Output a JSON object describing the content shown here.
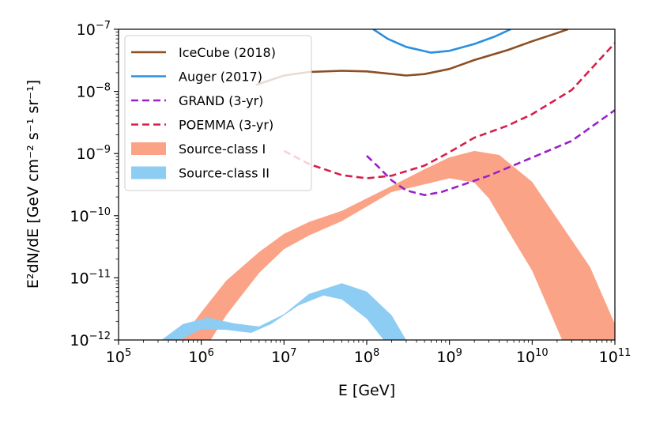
{
  "chart_data": {
    "type": "line",
    "title": "",
    "xlabel": "E [GeV]",
    "ylabel": "E²dN/dE [GeV cm⁻² s⁻¹ sr⁻¹]",
    "xscale": "log",
    "yscale": "log",
    "xlim": [
      100000,
      100000000000
    ],
    "ylim": [
      1e-12,
      1e-07
    ],
    "grid": false,
    "legend_position": "top-left",
    "x_ticks": [
      {
        "base": "10",
        "exp": "5"
      },
      {
        "base": "10",
        "exp": "6"
      },
      {
        "base": "10",
        "exp": "7"
      },
      {
        "base": "10",
        "exp": "8"
      },
      {
        "base": "10",
        "exp": "9"
      },
      {
        "base": "10",
        "exp": "10"
      },
      {
        "base": "10",
        "exp": "11"
      }
    ],
    "y_ticks": [
      {
        "base": "10",
        "exp": "−12"
      },
      {
        "base": "10",
        "exp": "−11"
      },
      {
        "base": "10",
        "exp": "−10"
      },
      {
        "base": "10",
        "exp": "−9"
      },
      {
        "base": "10",
        "exp": "−8"
      },
      {
        "base": "10",
        "exp": "−7"
      }
    ],
    "series": [
      {
        "name": "IceCube (2018)",
        "kind": "line",
        "style": "solid",
        "color": "#8c4f24",
        "points": [
          [
            4600000.0,
            1.27e-08
          ],
          [
            10000000.0,
            1.8e-08
          ],
          [
            20000000.0,
            2.05e-08
          ],
          [
            50000000.0,
            2.15e-08
          ],
          [
            100000000.0,
            2.1e-08
          ],
          [
            300000000.0,
            1.8e-08
          ],
          [
            500000000.0,
            1.9e-08
          ],
          [
            1000000000.0,
            2.3e-08
          ],
          [
            2000000000.0,
            3.2e-08
          ],
          [
            5000000000.0,
            4.6e-08
          ],
          [
            10000000000.0,
            6.4e-08
          ],
          [
            20000000000.0,
            8.7e-08
          ],
          [
            27000000000.0,
            1e-07
          ]
        ]
      },
      {
        "name": "Auger (2017)",
        "kind": "line",
        "style": "solid",
        "color": "#2b8fe0",
        "points": [
          [
            120000000.0,
            1e-07
          ],
          [
            180000000.0,
            7e-08
          ],
          [
            300000000.0,
            5.2e-08
          ],
          [
            600000000.0,
            4.2e-08
          ],
          [
            1000000000.0,
            4.5e-08
          ],
          [
            2000000000.0,
            5.8e-08
          ],
          [
            3500000000.0,
            7.6e-08
          ],
          [
            5500000000.0,
            1e-07
          ]
        ]
      },
      {
        "name": "GRAND (3-yr)",
        "kind": "line",
        "style": "dashed",
        "color": "#9b21c9",
        "points": [
          [
            100000000.0,
            9.2e-10
          ],
          [
            140000000.0,
            6e-10
          ],
          [
            200000000.0,
            3.7e-10
          ],
          [
            300000000.0,
            2.55e-10
          ],
          [
            500000000.0,
            2.15e-10
          ],
          [
            800000000.0,
            2.4e-10
          ],
          [
            1500000000.0,
            3.2e-10
          ],
          [
            3000000000.0,
            4.4e-10
          ],
          [
            10000000000.0,
            8.6e-10
          ],
          [
            30000000000.0,
            1.6e-09
          ],
          [
            100000000000.0,
            5e-09
          ]
        ]
      },
      {
        "name": "POEMMA (3-yr)",
        "kind": "line",
        "style": "dashed",
        "color": "#d81e4a",
        "points": [
          [
            10000000.0,
            1.1e-09
          ],
          [
            20000000.0,
            6.8e-10
          ],
          [
            50000000.0,
            4.5e-10
          ],
          [
            100000000.0,
            4e-10
          ],
          [
            200000000.0,
            4.4e-10
          ],
          [
            500000000.0,
            6.4e-10
          ],
          [
            1000000000.0,
            1.05e-09
          ],
          [
            2000000000.0,
            1.8e-09
          ],
          [
            5000000000.0,
            2.8e-09
          ],
          [
            10000000000.0,
            4.3e-09
          ],
          [
            30000000000.0,
            1.05e-08
          ],
          [
            100000000000.0,
            6e-08
          ]
        ]
      },
      {
        "name": "Source-class I",
        "kind": "band",
        "color": "#fba386",
        "upper": [
          [
            560000.0,
            1e-12
          ],
          [
            1000000.0,
            2.8e-12
          ],
          [
            2000000.0,
            9e-12
          ],
          [
            5000000.0,
            2.6e-11
          ],
          [
            10000000.0,
            5.1e-11
          ],
          [
            20000000.0,
            7.9e-11
          ],
          [
            50000000.0,
            1.2e-10
          ],
          [
            100000000.0,
            1.9e-10
          ],
          [
            200000000.0,
            3e-10
          ],
          [
            500000000.0,
            5.6e-10
          ],
          [
            1000000000.0,
            8.7e-10
          ],
          [
            2000000000.0,
            1.1e-09
          ],
          [
            4000000000.0,
            9.5e-10
          ],
          [
            10000000000.0,
            3.5e-10
          ],
          [
            20000000000.0,
            9e-11
          ],
          [
            50000000000.0,
            1.5e-11
          ],
          [
            100000000000.0,
            1.8e-12
          ]
        ],
        "lower": [
          [
            100000000000.0,
            1e-12
          ],
          [
            23000000000.0,
            1e-12
          ],
          [
            10000000000.0,
            1.3e-11
          ],
          [
            5000000000.0,
            6e-11
          ],
          [
            3000000000.0,
            1.9e-10
          ],
          [
            2000000000.0,
            3.4e-10
          ],
          [
            1000000000.0,
            4e-10
          ],
          [
            500000000.0,
            3.2e-10
          ],
          [
            200000000.0,
            2.4e-10
          ],
          [
            100000000.0,
            1.4e-10
          ],
          [
            50000000.0,
            8.2e-11
          ],
          [
            20000000.0,
            4.8e-11
          ],
          [
            10000000.0,
            2.9e-11
          ],
          [
            5000000.0,
            1.2e-11
          ],
          [
            2000000.0,
            2.5e-12
          ],
          [
            1300000.0,
            1e-12
          ]
        ]
      },
      {
        "name": "Source-class II",
        "kind": "band",
        "color": "#8dcdf3",
        "upper": [
          [
            330000.0,
            1e-12
          ],
          [
            600000.0,
            1.8e-12
          ],
          [
            1200000.0,
            2.3e-12
          ],
          [
            2500000.0,
            1.85e-12
          ],
          [
            5000000.0,
            1.65e-12
          ],
          [
            10000000.0,
            2.6e-12
          ],
          [
            20000000.0,
            5.5e-12
          ],
          [
            50000000.0,
            8.2e-12
          ],
          [
            100000000.0,
            6e-12
          ],
          [
            200000000.0,
            2.5e-12
          ],
          [
            300000000.0,
            1e-12
          ]
        ],
        "lower": [
          [
            160000000.0,
            1e-12
          ],
          [
            100000000.0,
            2.2e-12
          ],
          [
            50000000.0,
            4.5e-12
          ],
          [
            30000000.0,
            5.2e-12
          ],
          [
            15000000.0,
            3.6e-12
          ],
          [
            7000000.0,
            1.8e-12
          ],
          [
            4000000.0,
            1.3e-12
          ],
          [
            2000000.0,
            1.45e-12
          ],
          [
            1000000.0,
            1.5e-12
          ],
          [
            550000.0,
            1e-12
          ]
        ]
      }
    ]
  }
}
